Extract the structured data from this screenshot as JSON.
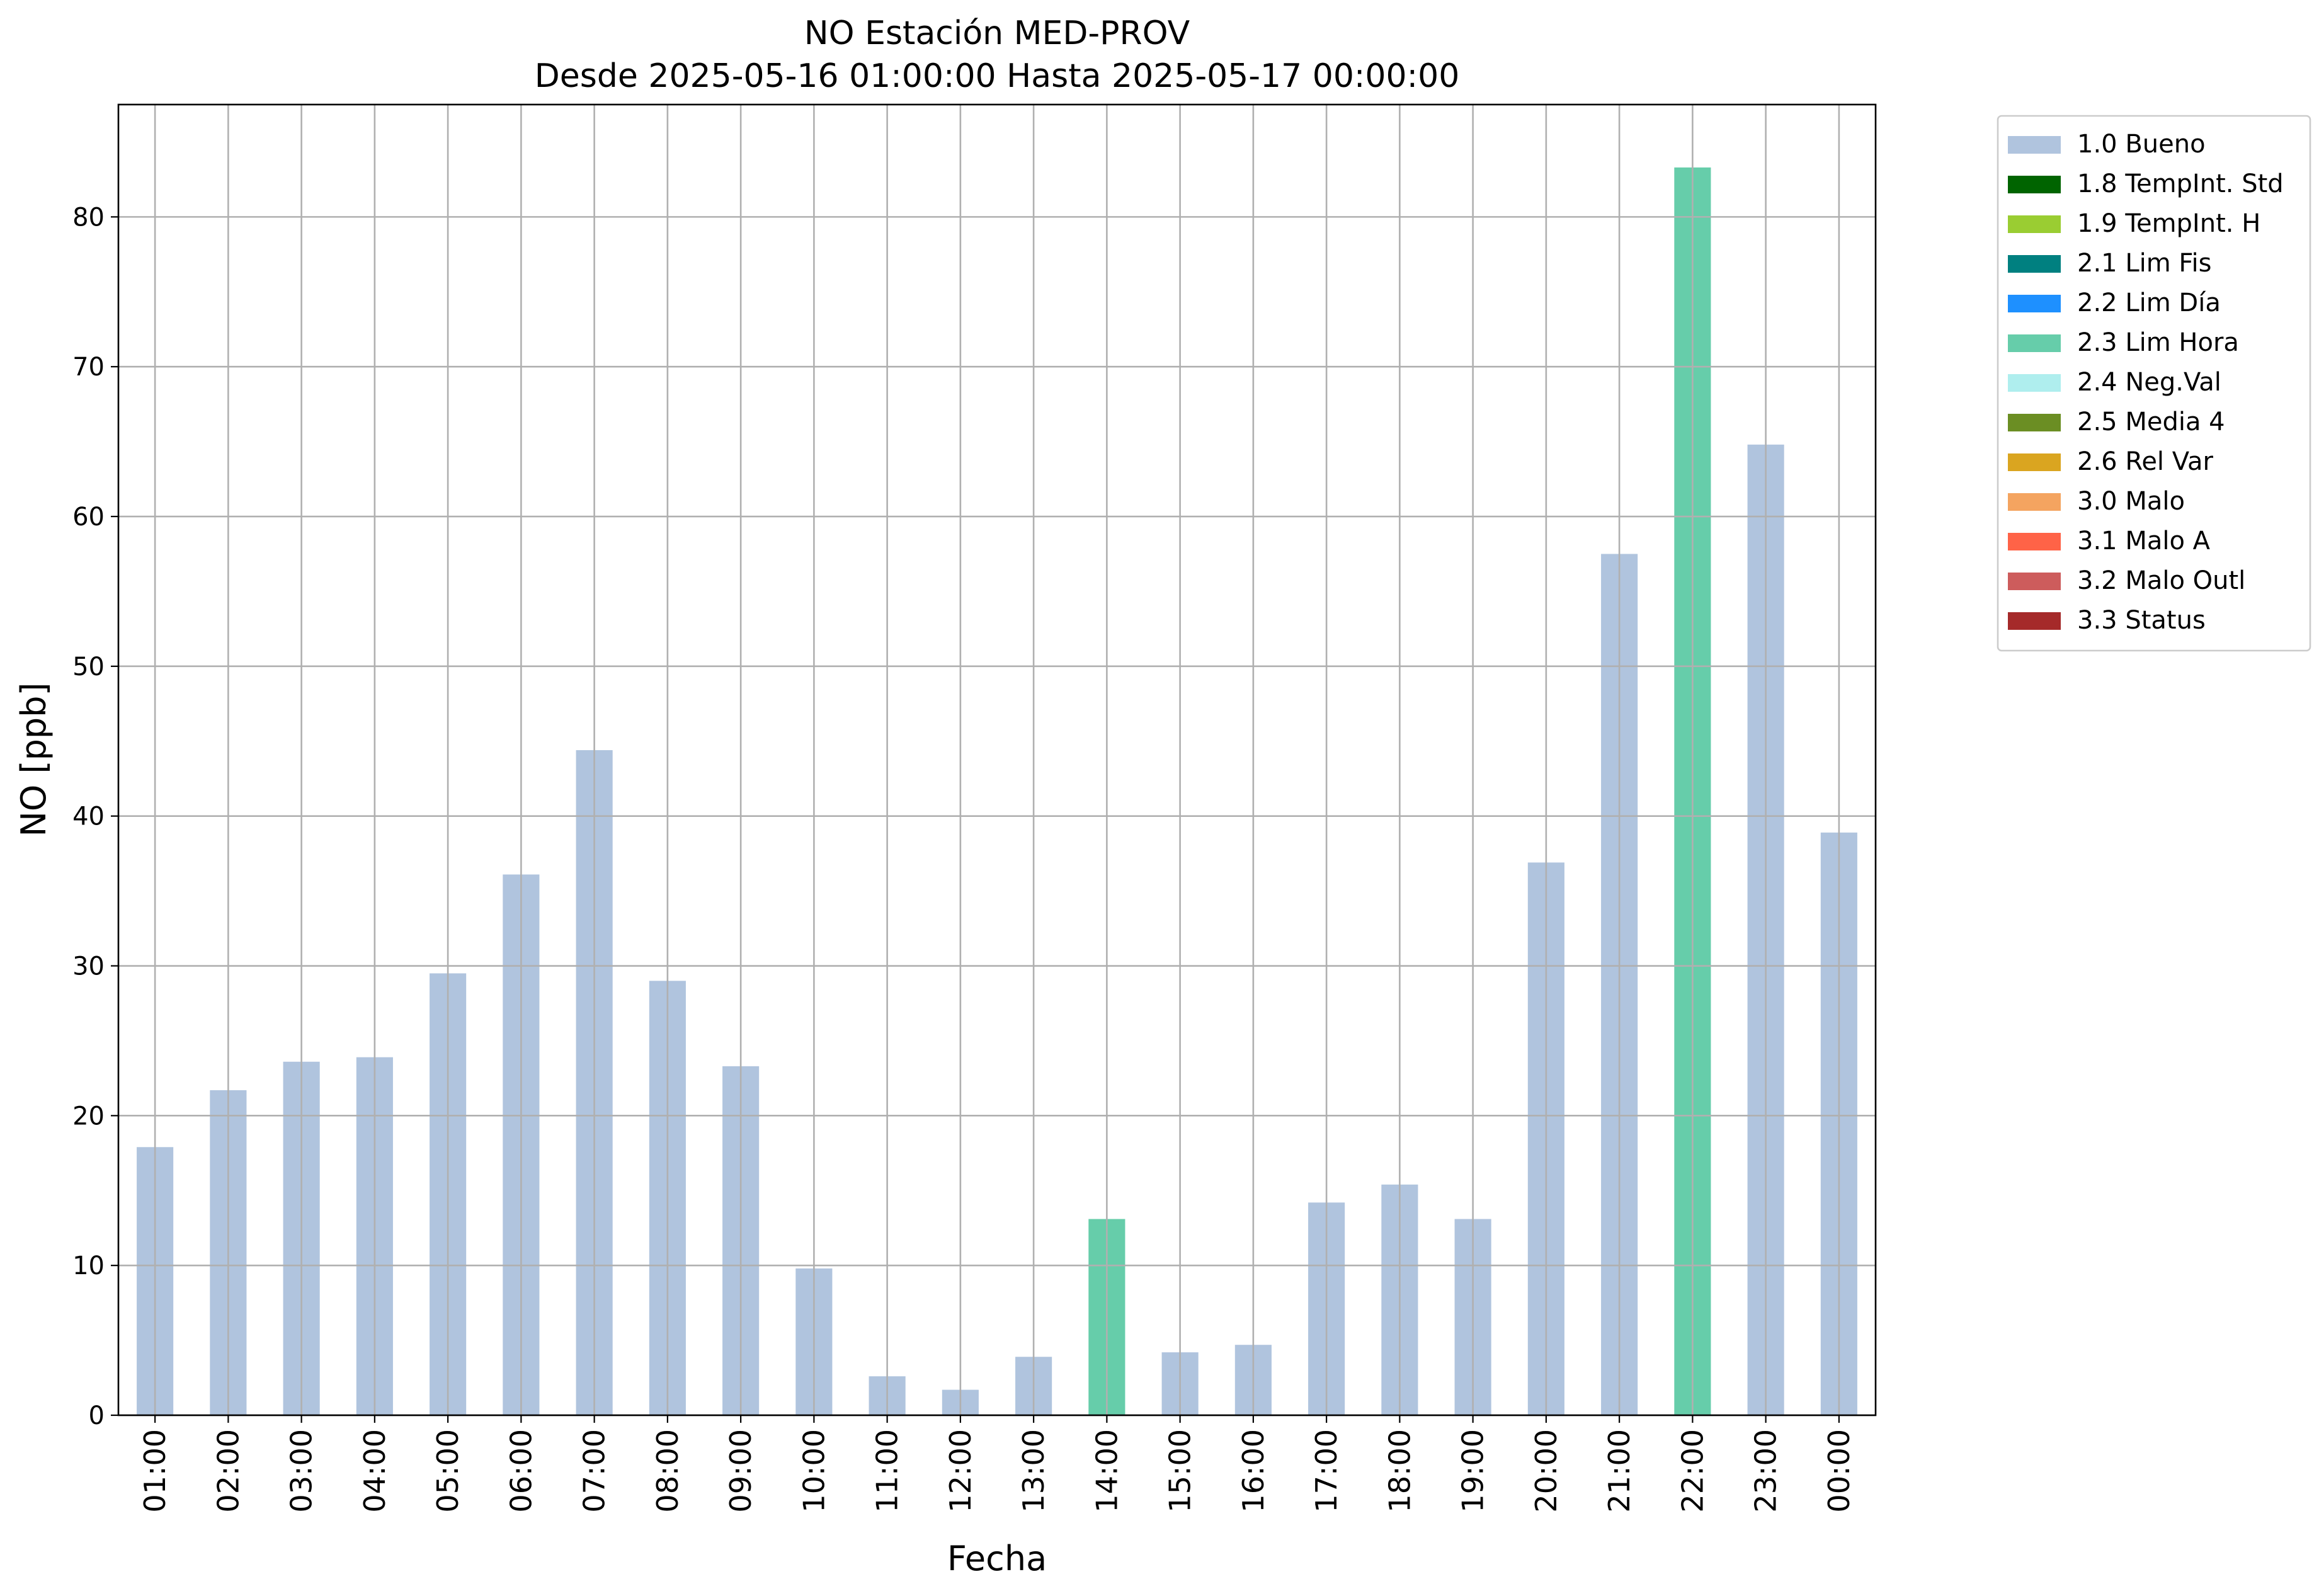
{
  "chart_data": {
    "type": "bar",
    "title": "NO Estación MED-PROV",
    "subtitle": "Desde 2025-05-16 01:00:00 Hasta 2025-05-17 00:00:00",
    "xlabel": "Fecha",
    "ylabel": "NO [ppb]",
    "ylim": [
      0,
      87.5
    ],
    "yticks": [
      0,
      10,
      20,
      30,
      40,
      50,
      60,
      70,
      80
    ],
    "grid": true,
    "legend_position": "outside-top-right",
    "categories": [
      "01:00",
      "02:00",
      "03:00",
      "04:00",
      "05:00",
      "06:00",
      "07:00",
      "08:00",
      "09:00",
      "10:00",
      "11:00",
      "12:00",
      "13:00",
      "14:00",
      "15:00",
      "16:00",
      "17:00",
      "18:00",
      "19:00",
      "20:00",
      "21:00",
      "22:00",
      "23:00",
      "00:00"
    ],
    "values": [
      17.9,
      21.7,
      23.6,
      23.9,
      29.5,
      36.1,
      44.4,
      29.0,
      23.3,
      9.8,
      2.6,
      1.7,
      3.9,
      13.1,
      4.2,
      4.7,
      14.2,
      15.4,
      13.1,
      36.9,
      57.5,
      83.3,
      64.8,
      38.9
    ],
    "flags": [
      "1.0 Bueno",
      "1.0 Bueno",
      "1.0 Bueno",
      "1.0 Bueno",
      "1.0 Bueno",
      "1.0 Bueno",
      "1.0 Bueno",
      "1.0 Bueno",
      "1.0 Bueno",
      "1.0 Bueno",
      "1.0 Bueno",
      "1.0 Bueno",
      "1.0 Bueno",
      "2.3 Lim Hora",
      "1.0 Bueno",
      "1.0 Bueno",
      "1.0 Bueno",
      "1.0 Bueno",
      "1.0 Bueno",
      "1.0 Bueno",
      "1.0 Bueno",
      "2.3 Lim Hora",
      "1.0 Bueno",
      "1.0 Bueno"
    ],
    "legend": [
      {
        "label": "1.0 Bueno",
        "color": "#b0c4de"
      },
      {
        "label": "1.8 TempInt. Std",
        "color": "#006400"
      },
      {
        "label": "1.9 TempInt. H",
        "color": "#9acd32"
      },
      {
        "label": "2.1 Lim Fis",
        "color": "#008080"
      },
      {
        "label": "2.2 Lim Día",
        "color": "#1e90ff"
      },
      {
        "label": "2.3 Lim Hora",
        "color": "#66cdaa"
      },
      {
        "label": "2.4 Neg.Val",
        "color": "#afeeee"
      },
      {
        "label": "2.5 Media 4",
        "color": "#6b8e23"
      },
      {
        "label": "2.6 Rel Var",
        "color": "#daa520"
      },
      {
        "label": "3.0 Malo",
        "color": "#f4a460"
      },
      {
        "label": "3.1 Malo A",
        "color": "#ff6347"
      },
      {
        "label": "3.2 Malo Outl",
        "color": "#cd5c5c"
      },
      {
        "label": "3.3 Status",
        "color": "#a52a2a"
      }
    ]
  }
}
